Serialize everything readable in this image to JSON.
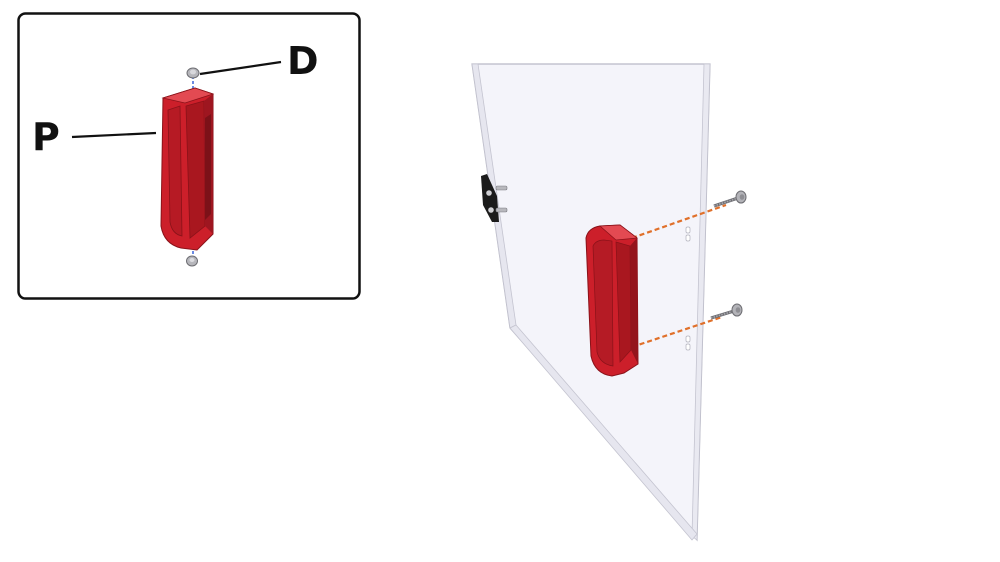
{
  "diagram": {
    "description_type": "assembly-instruction",
    "inset": {
      "labels": {
        "d": "D",
        "p": "P"
      }
    },
    "colors": {
      "handle": "#cc1f2a",
      "handle_dark": "#9e1620",
      "handle_light": "#e34a52",
      "panel_fill": "#f3f3f9",
      "panel_edge": "#b9b9c6",
      "screw": "#a8a8ad",
      "screw_dark": "#6e6e73",
      "guide_line": "#e0702a",
      "inset_guide": "#3a63d8",
      "latch": "#1b1b1b"
    },
    "icons": [
      "handle-part-p",
      "bolt-part-d",
      "door-panel",
      "latch-bracket"
    ]
  }
}
